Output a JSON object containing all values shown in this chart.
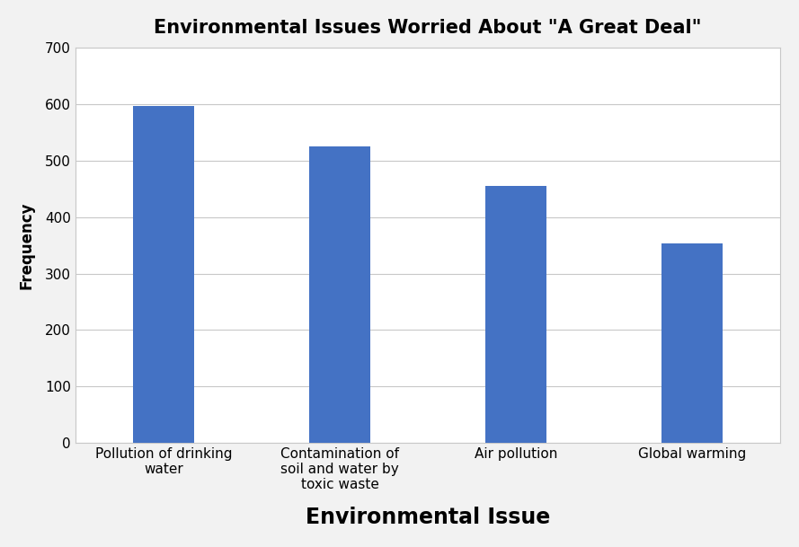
{
  "categories": [
    "Pollution of drinking\nwater",
    "Contamination of\nsoil and water by\ntoxic waste",
    "Air pollution",
    "Global warming"
  ],
  "values": [
    597,
    526,
    455,
    354
  ],
  "bar_color": "#4472C4",
  "title": "Environmental Issues Worried About \"A Great Deal\"",
  "xlabel": "Environmental Issue",
  "ylabel": "Frequency",
  "ylim": [
    0,
    700
  ],
  "yticks": [
    0,
    100,
    200,
    300,
    400,
    500,
    600,
    700
  ],
  "title_fontsize": 15,
  "xlabel_fontsize": 17,
  "ylabel_fontsize": 12,
  "tick_fontsize": 11,
  "bar_width": 0.35,
  "x_positions": [
    0.5,
    1.5,
    2.5,
    3.5
  ],
  "xlim": [
    0,
    4
  ],
  "background_color": "#f2f2f2",
  "plot_bg_color": "#ffffff",
  "grid_color": "#c8c8c8",
  "border_color": "#c8c8c8"
}
